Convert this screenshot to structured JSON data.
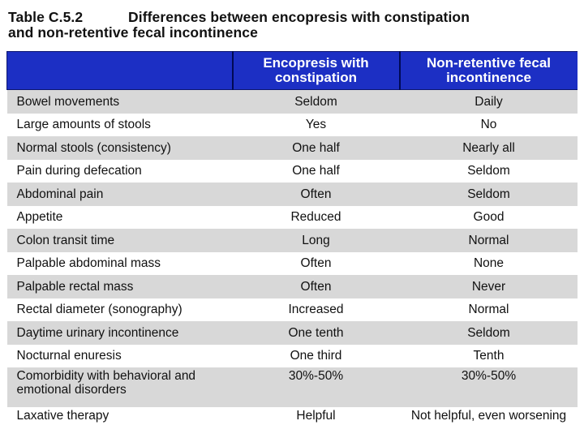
{
  "title": {
    "label": "Table C.5.2",
    "text_line1": "Differences between encopresis with constipation",
    "text_line2": "and non-retentive fecal incontinence"
  },
  "table": {
    "headers": [
      "",
      "Encopresis with constipation",
      "Non-retentive fecal incontinence"
    ],
    "rows": [
      {
        "feature": "Bowel movements",
        "encopresis": "Seldom",
        "nonretentive": "Daily"
      },
      {
        "feature": "Large amounts of stools",
        "encopresis": "Yes",
        "nonretentive": "No"
      },
      {
        "feature": "Normal stools (consistency)",
        "encopresis": "One half",
        "nonretentive": "Nearly all"
      },
      {
        "feature": "Pain during defecation",
        "encopresis": "One half",
        "nonretentive": "Seldom"
      },
      {
        "feature": "Abdominal pain",
        "encopresis": "Often",
        "nonretentive": "Seldom"
      },
      {
        "feature": "Appetite",
        "encopresis": "Reduced",
        "nonretentive": "Good"
      },
      {
        "feature": "Colon transit time",
        "encopresis": "Long",
        "nonretentive": "Normal"
      },
      {
        "feature": "Palpable abdominal mass",
        "encopresis": "Often",
        "nonretentive": "None"
      },
      {
        "feature": "Palpable rectal mass",
        "encopresis": "Often",
        "nonretentive": "Never"
      },
      {
        "feature": "Rectal diameter (sonography)",
        "encopresis": "Increased",
        "nonretentive": "Normal"
      },
      {
        "feature": "Daytime urinary incontinence",
        "encopresis": "One tenth",
        "nonretentive": "Seldom"
      },
      {
        "feature": "Nocturnal enuresis",
        "encopresis": "One third",
        "nonretentive": "Tenth"
      },
      {
        "feature": "Comorbidity with behavioral and emotional disorders",
        "encopresis": "30%-50%",
        "nonretentive": "30%-50%"
      },
      {
        "feature": "Laxative therapy",
        "encopresis": "Helpful",
        "nonretentive": "Not helpful, even worsening"
      }
    ]
  },
  "colors": {
    "header_bg": "#1c2fc4",
    "header_text": "#ffffff",
    "row_shaded": "#d8d8d8",
    "row_plain": "#ffffff"
  }
}
